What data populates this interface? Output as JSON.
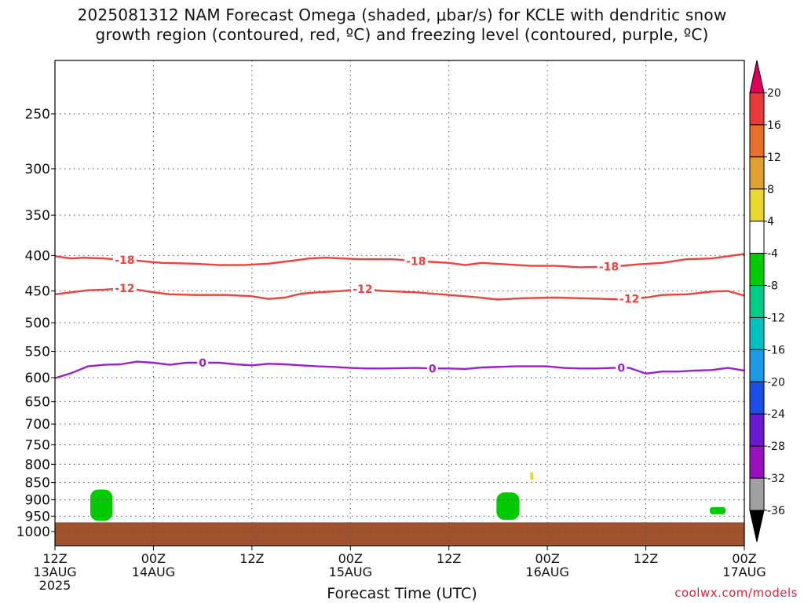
{
  "title": {
    "line1": "2025081312 NAM Forecast Omega (shaded, μbar/s) for KCLE with dendritic snow",
    "line2": "growth region (contoured, red, ºC) and freezing level (contoured, purple, ºC)"
  },
  "credit": "coolwx.com/models",
  "chart_data": {
    "type": "time-height cross section",
    "xlabel": "Forecast Time (UTC)",
    "x_ticks": [
      {
        "hours": 0,
        "label": [
          "12Z",
          "13AUG",
          "2025"
        ]
      },
      {
        "hours": 12,
        "label": [
          "00Z",
          "14AUG"
        ]
      },
      {
        "hours": 24,
        "label": [
          "12Z"
        ]
      },
      {
        "hours": 36,
        "label": [
          "00Z",
          "15AUG"
        ]
      },
      {
        "hours": 48,
        "label": [
          "12Z"
        ]
      },
      {
        "hours": 60,
        "label": [
          "00Z",
          "16AUG"
        ]
      },
      {
        "hours": 72,
        "label": [
          "12Z"
        ]
      },
      {
        "hours": 84,
        "label": [
          "00Z",
          "17AUG"
        ]
      }
    ],
    "xlim": [
      0,
      84
    ],
    "y_scale": "log-pressure (hPa), inverted",
    "y_ticks": [
      250,
      300,
      350,
      400,
      450,
      500,
      550,
      600,
      650,
      700,
      750,
      800,
      850,
      900,
      950,
      1000
    ],
    "ylim": [
      1025,
      200
    ],
    "grid": true,
    "contours": [
      {
        "name": "-18",
        "color": "#f0403a",
        "label_positions_hours": [
          8.5,
          44,
          67.5
        ],
        "points": [
          [
            0,
            401
          ],
          [
            2,
            404
          ],
          [
            3.5,
            403
          ],
          [
            6,
            404
          ],
          [
            10,
            407
          ],
          [
            13,
            410
          ],
          [
            17,
            411
          ],
          [
            20,
            413
          ],
          [
            23,
            413
          ],
          [
            26,
            411
          ],
          [
            29,
            407
          ],
          [
            31,
            404
          ],
          [
            33,
            403
          ],
          [
            37,
            405
          ],
          [
            41,
            405
          ],
          [
            45,
            408
          ],
          [
            48,
            410
          ],
          [
            50,
            413
          ],
          [
            52,
            410
          ],
          [
            55,
            412
          ],
          [
            58,
            414
          ],
          [
            61,
            414
          ],
          [
            64,
            416
          ],
          [
            68,
            415
          ],
          [
            71,
            412
          ],
          [
            74,
            410
          ],
          [
            77,
            405
          ],
          [
            80,
            404
          ],
          [
            82,
            401
          ],
          [
            84,
            398
          ]
        ]
      },
      {
        "name": "-12",
        "color": "#f0403a",
        "label_positions_hours": [
          8.5,
          37.5,
          70
        ],
        "points": [
          [
            0,
            455
          ],
          [
            2,
            452
          ],
          [
            4,
            449
          ],
          [
            6,
            448
          ],
          [
            8.5,
            446
          ],
          [
            10,
            448
          ],
          [
            12,
            452
          ],
          [
            14,
            455
          ],
          [
            17,
            456
          ],
          [
            21,
            456
          ],
          [
            24,
            458
          ],
          [
            26,
            462
          ],
          [
            28,
            460
          ],
          [
            30,
            454
          ],
          [
            32,
            452
          ],
          [
            35,
            450
          ],
          [
            37.5,
            447
          ],
          [
            40,
            450
          ],
          [
            44,
            452
          ],
          [
            48,
            456
          ],
          [
            51,
            459
          ],
          [
            54,
            463
          ],
          [
            57,
            461
          ],
          [
            61,
            460
          ],
          [
            64,
            461
          ],
          [
            67,
            462
          ],
          [
            69,
            463
          ],
          [
            72,
            460
          ],
          [
            74,
            456
          ],
          [
            77,
            455
          ],
          [
            80,
            451
          ],
          [
            82,
            450
          ],
          [
            84,
            457
          ]
        ]
      },
      {
        "name": "0",
        "color": "#9a20d0",
        "label_positions_hours": [
          18,
          46,
          69
        ],
        "points": [
          [
            0,
            601
          ],
          [
            2,
            591
          ],
          [
            4,
            578
          ],
          [
            6,
            575
          ],
          [
            8,
            574
          ],
          [
            10,
            569
          ],
          [
            12,
            571
          ],
          [
            14,
            575
          ],
          [
            16,
            571
          ],
          [
            18,
            571
          ],
          [
            20,
            571
          ],
          [
            22,
            574
          ],
          [
            24,
            576
          ],
          [
            26,
            573
          ],
          [
            28,
            574
          ],
          [
            30,
            576
          ],
          [
            32,
            578
          ],
          [
            34,
            579
          ],
          [
            36,
            581
          ],
          [
            38,
            582
          ],
          [
            40,
            582
          ],
          [
            44,
            581
          ],
          [
            46,
            582
          ],
          [
            48,
            582
          ],
          [
            50,
            583
          ],
          [
            52,
            580
          ],
          [
            56,
            578
          ],
          [
            58,
            578
          ],
          [
            60,
            578
          ],
          [
            62,
            581
          ],
          [
            64,
            582
          ],
          [
            66,
            582
          ],
          [
            68,
            581
          ],
          [
            70,
            581
          ],
          [
            72,
            592
          ],
          [
            74,
            588
          ],
          [
            76,
            588
          ],
          [
            78,
            586
          ],
          [
            80,
            585
          ],
          [
            82,
            581
          ],
          [
            84,
            586
          ]
        ]
      }
    ],
    "shaded_regions": [
      {
        "value": -6,
        "color": "#00cc00",
        "hours_range": [
          4.3,
          7.0
        ],
        "pressure_range": [
          870,
          965
        ]
      },
      {
        "value": -6,
        "color": "#00cc00",
        "hours_range": [
          53.8,
          56.6
        ],
        "pressure_range": [
          878,
          962
        ]
      },
      {
        "value": 5,
        "color": "#e8d830",
        "hours_range": [
          57.9,
          58.3
        ],
        "pressure_range": [
          822,
          842
        ]
      },
      {
        "value": -6,
        "color": "#00cc00",
        "hours_range": [
          79.8,
          81.7
        ],
        "pressure_range": [
          922,
          944
        ]
      }
    ],
    "surface_fill_color": "#a0522d",
    "colorbar": {
      "labels": [
        "20",
        "16",
        "12",
        "8",
        "4",
        "-4",
        "-8",
        "-12",
        "-16",
        "-20",
        "-24",
        "-28",
        "-32",
        "-36"
      ],
      "colors": [
        "#e0005a",
        "#e83a3a",
        "#e8702a",
        "#e0a030",
        "#e8d830",
        "#ffffff",
        "#00cc00",
        "#00cc88",
        "#00c0c0",
        "#1a9ae8",
        "#1a50e8",
        "#6a1ad0",
        "#9a10c0",
        "#a0a0a0",
        "#000000"
      ]
    }
  }
}
